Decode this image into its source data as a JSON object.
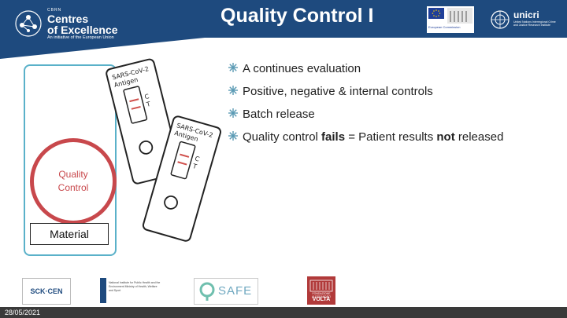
{
  "header": {
    "title": "Quality Control I",
    "logo_left": {
      "small": "CBRN",
      "line1": "Centres",
      "line2": "of Excellence",
      "line3": "An initiative of the European Union"
    },
    "logo_ec": {
      "name": "European Commission"
    },
    "logo_unicri": {
      "name": "unicri",
      "sub": "United Nations Interregional Crime and Justice Research Institute"
    }
  },
  "drawing": {
    "circle_label_1": "Quality",
    "circle_label_2": "Control",
    "material_label": "Material",
    "test_label_1": "SARS-CoV-2",
    "test_label_2": "Antigen",
    "line_c": "C",
    "line_t": "T"
  },
  "bullets": [
    {
      "text": "A continues evaluation"
    },
    {
      "text": "Positive, negative & internal controls"
    },
    {
      "text": "Batch release"
    },
    {
      "pre": "Quality control ",
      "bold1": "fails",
      "mid": " = Patient results ",
      "bold2": "not",
      "post": " released"
    }
  ],
  "footer": {
    "logo_sck": "SCK·CEN",
    "logo_rivm": "National Institute for Public Health and the Environment Ministry of Health, Welfare and Sport",
    "logo_safe": "SAFE",
    "logo_volta_1": "FONDAZIONE ALESSANDRO",
    "logo_volta_2": "VOLTA",
    "date": "28/05/2021"
  },
  "colors": {
    "brand": "#1e4a7e",
    "accent": "#c8484c",
    "box": "#5ab1c9",
    "bullet": "#5a9ab4"
  }
}
